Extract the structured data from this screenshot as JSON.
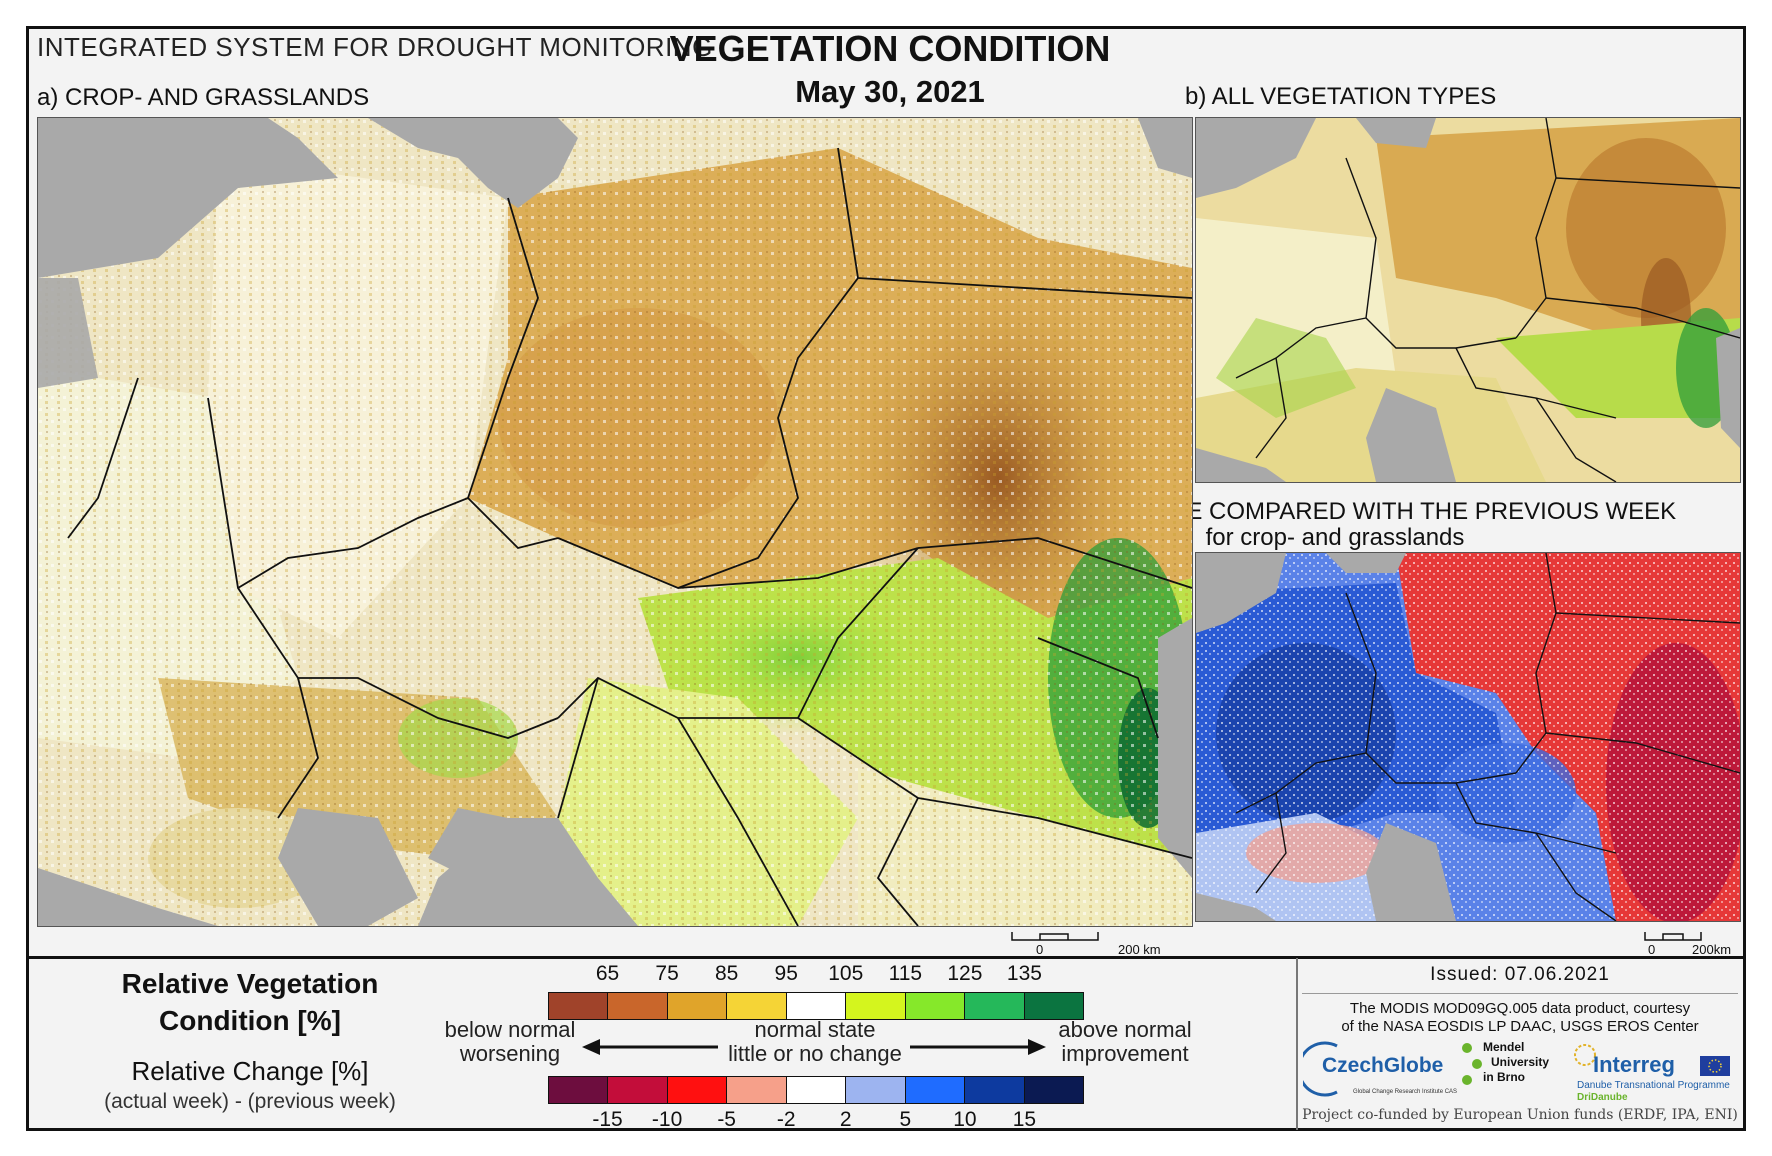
{
  "header": {
    "system": "INTEGRATED SYSTEM FOR DROUGHT MONITORING",
    "title": "VEGETATION CONDITION",
    "date": "May 30, 2021"
  },
  "panels": {
    "a_label": "a) CROP- AND GRASSLANDS",
    "b_label": "b) ALL VEGETATION TYPES",
    "c_label": "c) CHANGE COMPARED WITH THE PREVIOUS WEEK",
    "c_sub": "for crop- and grasslands"
  },
  "scalebar_a": {
    "zero": "0",
    "end": "200 km"
  },
  "scalebar_c": {
    "zero": "0",
    "end": "200km"
  },
  "legend": {
    "rvc_title_line1": "Relative Vegetation",
    "rvc_title_line2": "Condition [%]",
    "rc_title": "Relative Change [%]",
    "rc_sub": "(actual week) - (previous week)",
    "rvc_ticks": [
      "65",
      "75",
      "85",
      "95",
      "105",
      "115",
      "125",
      "135"
    ],
    "rvc_colors": [
      "#a0432a",
      "#c9662b",
      "#e0a42a",
      "#f5d436",
      "#ffffff",
      "#d4f51e",
      "#86e82a",
      "#25b85a",
      "#0b7440"
    ],
    "rc_ticks": [
      "-15",
      "-10",
      "-5",
      "-2",
      "2",
      "5",
      "10",
      "15"
    ],
    "rc_colors": [
      "#6d0d3e",
      "#c30d3a",
      "#ff1010",
      "#f6a08a",
      "#ffffff",
      "#9db4f0",
      "#1f6cff",
      "#0d3a9f",
      "#0b1a52"
    ],
    "below_line1": "below normal",
    "below_line2": "worsening",
    "normal_line1": "normal state",
    "normal_line2": "little or no change",
    "above_line1": "above normal",
    "above_line2": "improvement"
  },
  "credits": {
    "issued": "Issued: 07.06.2021",
    "source_line1": "The MODIS MOD09GQ.005 data product, courtesy",
    "source_line2": "of the NASA EOSDIS LP DAAC, USGS EROS Center",
    "logo_czechglobe": "CzechGlobe",
    "logo_czechglobe_sub": "Global Change Research Institute CAS",
    "logo_mendel_1": "Mendel",
    "logo_mendel_2": "University",
    "logo_mendel_3": "in Brno",
    "logo_interreg": "Interreg",
    "logo_interreg_sub": "Danube Transnational Programme",
    "logo_dridanube": "DriDanube",
    "funding": "Project co-funded by European Union funds (ERDF, IPA, ENI)"
  },
  "colors": {
    "sea": "#a9a9a9",
    "border": "#111111"
  }
}
